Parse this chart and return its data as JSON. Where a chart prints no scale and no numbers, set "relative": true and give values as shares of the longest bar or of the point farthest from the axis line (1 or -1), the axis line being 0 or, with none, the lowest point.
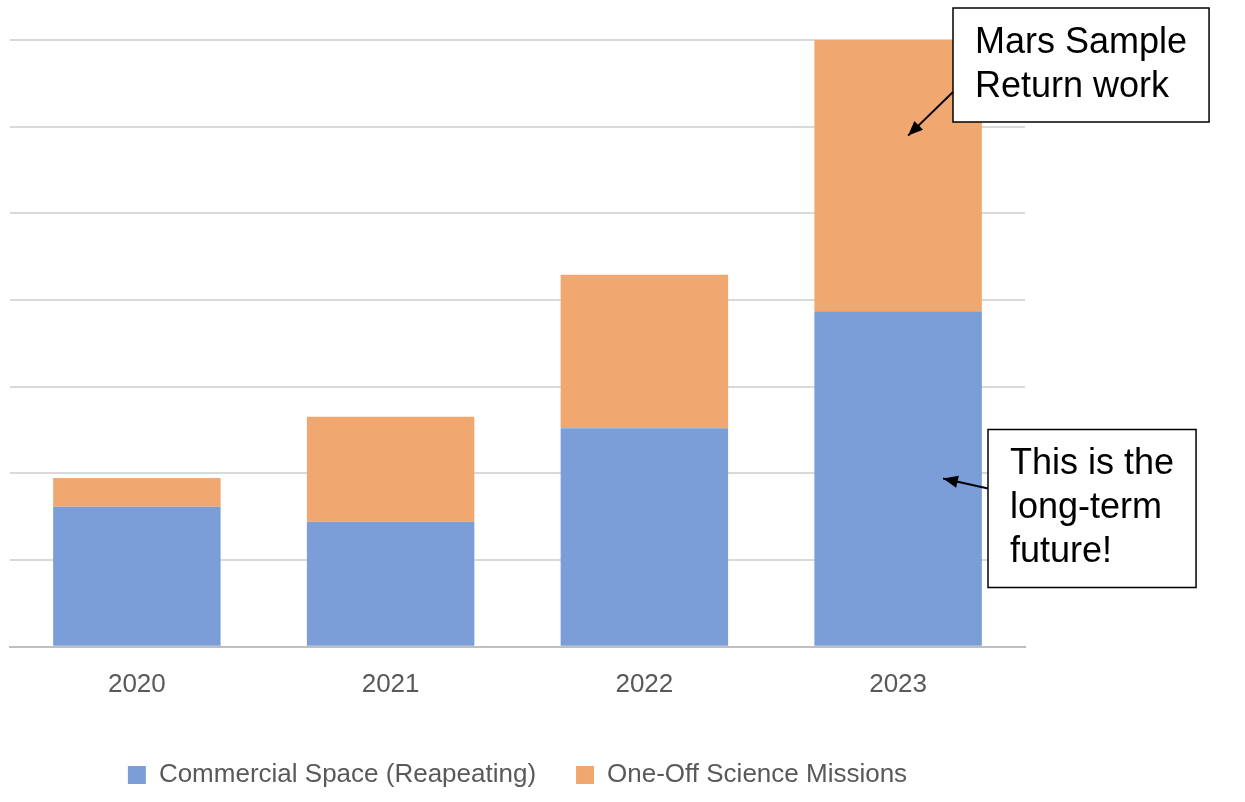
{
  "chart_data": {
    "type": "bar",
    "stacked": true,
    "relative": true,
    "grid": "y",
    "legend": "bottom",
    "categories": [
      "2020",
      "2021",
      "2022",
      "2023"
    ],
    "series": [
      {
        "name": "Commercial Space (Reapeating)",
        "color": "#7b9ed8",
        "values": [
          0.231,
          0.206,
          0.36,
          0.553
        ]
      },
      {
        "name": "One-Off Science Missions",
        "color": "#f0a870",
        "values": [
          0.047,
          0.173,
          0.253,
          0.447
        ]
      }
    ],
    "annotations": [
      "Mars Sample Return work",
      "This is the long-term future!"
    ]
  }
}
